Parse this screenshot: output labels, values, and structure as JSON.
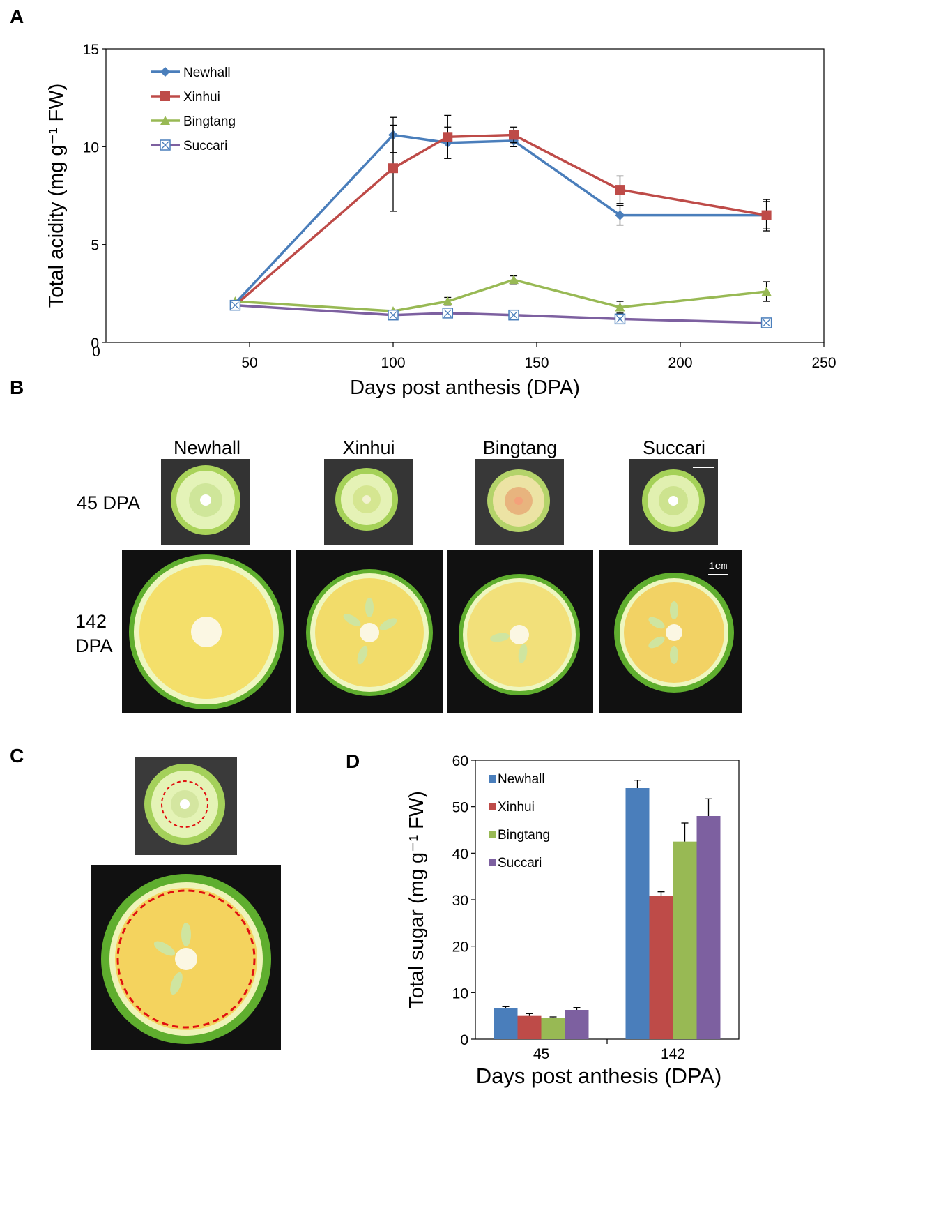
{
  "panels": {
    "a": "A",
    "b": "B",
    "c": "C",
    "d": "D"
  },
  "colors": {
    "newhall": "#4a7ebb",
    "xinhui": "#be4b48",
    "bingtang": "#98b954",
    "succari": "#7d60a0"
  },
  "chart_data": [
    {
      "id": "A",
      "type": "line",
      "ylabel": "Total acidity (mg g⁻¹ FW)",
      "xlabel": "Days post anthesis (DPA)",
      "xlim": [
        0,
        250
      ],
      "ylim": [
        0,
        15
      ],
      "x_ticks": [
        50,
        100,
        150,
        200,
        250
      ],
      "y_ticks": [
        0,
        5,
        10,
        15
      ],
      "x": [
        45,
        100,
        119,
        142,
        179,
        230
      ],
      "series": [
        {
          "name": "Newhall",
          "marker": "diamond",
          "values": [
            2.0,
            10.6,
            10.2,
            10.3,
            6.5,
            6.5
          ],
          "errors": [
            0.1,
            0.9,
            0.8,
            0.3,
            0.5,
            0.8
          ]
        },
        {
          "name": "Xinhui",
          "marker": "square",
          "values": [
            1.9,
            8.9,
            10.5,
            10.6,
            7.8,
            6.5
          ],
          "errors": [
            0.1,
            2.2,
            1.1,
            0.4,
            0.7,
            0.7
          ]
        },
        {
          "name": "Bingtang",
          "marker": "triangle",
          "values": [
            2.1,
            1.6,
            2.1,
            3.2,
            1.8,
            2.6
          ],
          "errors": [
            0.1,
            0.1,
            0.2,
            0.2,
            0.3,
            0.5
          ]
        },
        {
          "name": "Succari",
          "marker": "crossed-square",
          "values": [
            1.9,
            1.4,
            1.5,
            1.4,
            1.2,
            1.0
          ],
          "errors": [
            0.1,
            0.1,
            0.1,
            0.1,
            0.1,
            0.1
          ]
        }
      ]
    },
    {
      "id": "D",
      "type": "bar",
      "ylabel": "Total sugar (mg g⁻¹ FW)",
      "xlabel": "Days post anthesis (DPA)",
      "ylim": [
        0,
        60
      ],
      "y_ticks": [
        0,
        10,
        20,
        30,
        40,
        50,
        60
      ],
      "categories": [
        "45",
        "142"
      ],
      "series": [
        {
          "name": "Newhall",
          "values": [
            6.6,
            54.0
          ],
          "errors": [
            0.4,
            1.7
          ]
        },
        {
          "name": "Xinhui",
          "values": [
            5.0,
            30.8
          ],
          "errors": [
            0.5,
            0.9
          ]
        },
        {
          "name": "Bingtang",
          "values": [
            4.6,
            42.5
          ],
          "errors": [
            0.2,
            4.0
          ]
        },
        {
          "name": "Succari",
          "values": [
            6.3,
            48.0
          ],
          "errors": [
            0.5,
            3.7
          ]
        }
      ]
    }
  ],
  "panel_b": {
    "columns": [
      "Newhall",
      "Xinhui",
      "Bingtang",
      "Succari"
    ],
    "row1": "45 DPA",
    "row2_line1": "142",
    "row2_line2": "DPA",
    "scale_bar": "1cm"
  }
}
